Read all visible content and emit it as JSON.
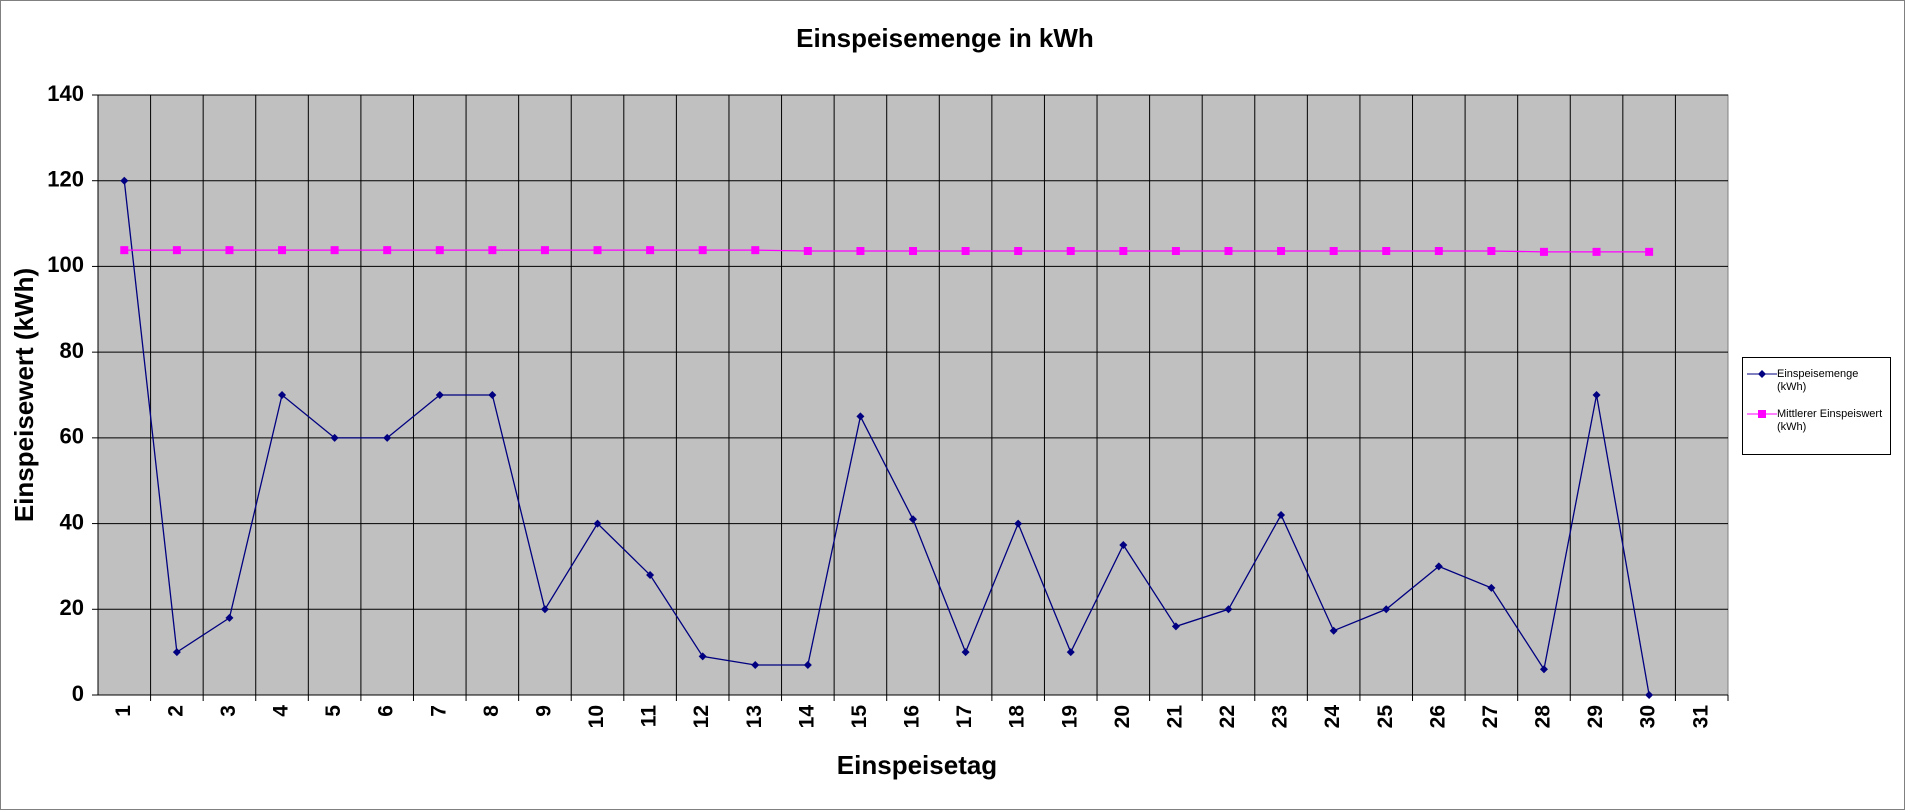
{
  "chart_data": {
    "type": "line",
    "title": "Einspeisemenge in kWh",
    "xlabel": "Einspeisetag",
    "ylabel": "Einspeisewert  (kWh)",
    "categories": [
      "1",
      "2",
      "3",
      "4",
      "5",
      "6",
      "7",
      "8",
      "9",
      "10",
      "11",
      "12",
      "13",
      "14",
      "15",
      "16",
      "17",
      "18",
      "19",
      "20",
      "21",
      "22",
      "23",
      "24",
      "25",
      "26",
      "27",
      "28",
      "29",
      "30",
      "31"
    ],
    "series": [
      {
        "name": "Einspeisemenge (kWh)",
        "color": "#000080",
        "marker": "diamond",
        "values": [
          120,
          10,
          18,
          70,
          60,
          60,
          70,
          70,
          20,
          40,
          28,
          9,
          7,
          7,
          65,
          41,
          10,
          40,
          10,
          35,
          16,
          20,
          42,
          15,
          20,
          30,
          25,
          6,
          70,
          0,
          null
        ]
      },
      {
        "name": "Mittlerer Einspeiswert (kWh)",
        "color": "#ff00ff",
        "marker": "square",
        "values": [
          103.8,
          103.8,
          103.8,
          103.8,
          103.8,
          103.8,
          103.8,
          103.8,
          103.8,
          103.8,
          103.8,
          103.8,
          103.8,
          103.6,
          103.6,
          103.6,
          103.6,
          103.6,
          103.6,
          103.6,
          103.6,
          103.6,
          103.6,
          103.6,
          103.6,
          103.6,
          103.6,
          103.4,
          103.4,
          103.4,
          null
        ]
      }
    ],
    "ylim": [
      0,
      140
    ],
    "yticks": [
      0,
      20,
      40,
      60,
      80,
      100,
      120,
      140
    ],
    "grid": true,
    "plot_background": "#c0c0c0",
    "legend": "right"
  }
}
